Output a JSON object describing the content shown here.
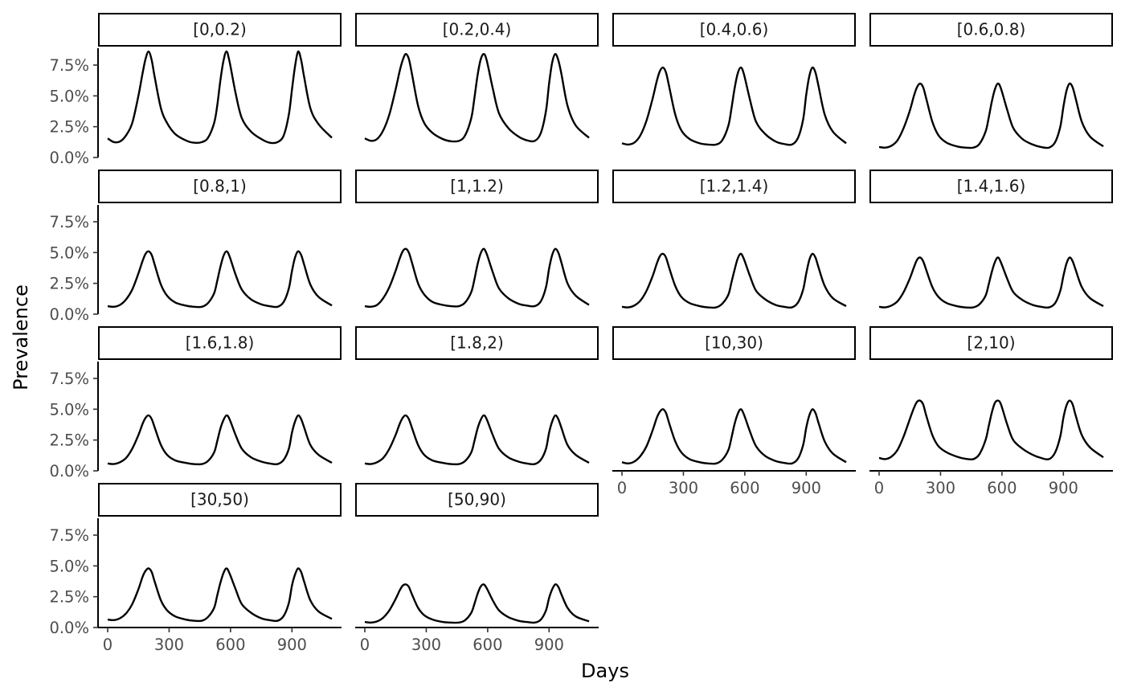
{
  "chart_data": {
    "type": "line",
    "layout": "faceted small multiples, 4 columns",
    "xlabel": "Days",
    "ylabel": "Prevalence",
    "xlim": [
      0,
      1095
    ],
    "ylim": [
      0,
      0.09
    ],
    "x_ticks": [
      0,
      300,
      600,
      900
    ],
    "x_tick_labels": [
      "0",
      "300",
      "600",
      "900"
    ],
    "y_ticks": [
      0,
      0.025,
      0.05,
      0.075
    ],
    "y_tick_labels": [
      "0.0%",
      "2.5%",
      "5.0%",
      "7.5%"
    ],
    "series_color": "#000000",
    "grid": false,
    "x_sampled": [
      0,
      30,
      60,
      90,
      120,
      150,
      170,
      185,
      200,
      215,
      230,
      260,
      290,
      330,
      380,
      420,
      460,
      490,
      520,
      535,
      550,
      565,
      580,
      595,
      625,
      655,
      700,
      750,
      790,
      830,
      860,
      885,
      900,
      915,
      930,
      945,
      960,
      990,
      1030,
      1095
    ],
    "facets": [
      {
        "label": "[0,0.2)",
        "values": [
          0.0155,
          0.0125,
          0.013,
          0.018,
          0.028,
          0.05,
          0.068,
          0.08,
          0.086,
          0.079,
          0.065,
          0.04,
          0.028,
          0.019,
          0.014,
          0.012,
          0.0125,
          0.016,
          0.028,
          0.042,
          0.062,
          0.078,
          0.086,
          0.078,
          0.052,
          0.032,
          0.021,
          0.015,
          0.012,
          0.0125,
          0.018,
          0.035,
          0.055,
          0.074,
          0.086,
          0.079,
          0.065,
          0.04,
          0.027,
          0.016
        ]
      },
      {
        "label": "[0.2,0.4)",
        "values": [
          0.0155,
          0.0135,
          0.015,
          0.022,
          0.035,
          0.055,
          0.07,
          0.079,
          0.084,
          0.08,
          0.068,
          0.042,
          0.028,
          0.02,
          0.015,
          0.0132,
          0.0135,
          0.018,
          0.032,
          0.048,
          0.066,
          0.079,
          0.084,
          0.079,
          0.056,
          0.036,
          0.024,
          0.017,
          0.014,
          0.0135,
          0.02,
          0.038,
          0.06,
          0.077,
          0.084,
          0.079,
          0.068,
          0.042,
          0.026,
          0.016
        ]
      },
      {
        "label": "[0.4,0.6)",
        "values": [
          0.0115,
          0.0105,
          0.012,
          0.018,
          0.03,
          0.048,
          0.062,
          0.07,
          0.073,
          0.069,
          0.058,
          0.035,
          0.022,
          0.015,
          0.0115,
          0.0105,
          0.0105,
          0.014,
          0.026,
          0.04,
          0.056,
          0.068,
          0.073,
          0.068,
          0.047,
          0.029,
          0.019,
          0.013,
          0.011,
          0.0105,
          0.016,
          0.031,
          0.051,
          0.066,
          0.073,
          0.069,
          0.058,
          0.035,
          0.021,
          0.0115
        ]
      },
      {
        "label": "[0.6,0.8)",
        "values": [
          0.0085,
          0.008,
          0.0095,
          0.014,
          0.024,
          0.038,
          0.05,
          0.057,
          0.06,
          0.057,
          0.048,
          0.029,
          0.018,
          0.012,
          0.009,
          0.008,
          0.008,
          0.011,
          0.021,
          0.032,
          0.045,
          0.055,
          0.06,
          0.056,
          0.039,
          0.024,
          0.015,
          0.0105,
          0.0085,
          0.008,
          0.0125,
          0.025,
          0.041,
          0.054,
          0.06,
          0.057,
          0.048,
          0.029,
          0.017,
          0.009
        ]
      },
      {
        "label": "[0.8,1)",
        "values": [
          0.0065,
          0.006,
          0.0075,
          0.012,
          0.02,
          0.033,
          0.043,
          0.049,
          0.051,
          0.048,
          0.04,
          0.024,
          0.015,
          0.0095,
          0.007,
          0.006,
          0.006,
          0.009,
          0.017,
          0.027,
          0.038,
          0.047,
          0.051,
          0.047,
          0.032,
          0.02,
          0.012,
          0.008,
          0.0065,
          0.006,
          0.01,
          0.021,
          0.035,
          0.046,
          0.051,
          0.048,
          0.04,
          0.024,
          0.014,
          0.007
        ]
      },
      {
        "label": "[1,1.2)",
        "values": [
          0.0065,
          0.006,
          0.0075,
          0.013,
          0.022,
          0.035,
          0.045,
          0.051,
          0.053,
          0.05,
          0.042,
          0.025,
          0.016,
          0.01,
          0.0075,
          0.0065,
          0.0065,
          0.0095,
          0.018,
          0.028,
          0.04,
          0.049,
          0.053,
          0.049,
          0.034,
          0.021,
          0.013,
          0.0085,
          0.007,
          0.0065,
          0.0105,
          0.022,
          0.037,
          0.048,
          0.053,
          0.05,
          0.042,
          0.025,
          0.015,
          0.0075
        ]
      },
      {
        "label": "[1.2,1.4)",
        "values": [
          0.006,
          0.0055,
          0.007,
          0.011,
          0.019,
          0.031,
          0.041,
          0.047,
          0.049,
          0.046,
          0.038,
          0.023,
          0.014,
          0.009,
          0.0065,
          0.0055,
          0.0055,
          0.0085,
          0.016,
          0.026,
          0.036,
          0.045,
          0.049,
          0.045,
          0.031,
          0.019,
          0.012,
          0.0075,
          0.006,
          0.0055,
          0.0095,
          0.02,
          0.033,
          0.044,
          0.049,
          0.046,
          0.038,
          0.023,
          0.013,
          0.0065
        ]
      },
      {
        "label": "[1.4,1.6)",
        "values": [
          0.006,
          0.0055,
          0.007,
          0.0105,
          0.018,
          0.029,
          0.038,
          0.044,
          0.046,
          0.043,
          0.036,
          0.022,
          0.014,
          0.009,
          0.0065,
          0.0055,
          0.0055,
          0.008,
          0.015,
          0.024,
          0.034,
          0.042,
          0.046,
          0.042,
          0.029,
          0.018,
          0.0115,
          0.0075,
          0.006,
          0.0055,
          0.009,
          0.019,
          0.031,
          0.041,
          0.046,
          0.043,
          0.036,
          0.022,
          0.013,
          0.0065
        ]
      },
      {
        "label": "[1.6,1.8)",
        "values": [
          0.006,
          0.0055,
          0.007,
          0.0105,
          0.018,
          0.029,
          0.038,
          0.043,
          0.045,
          0.042,
          0.035,
          0.021,
          0.013,
          0.0085,
          0.0065,
          0.0055,
          0.0055,
          0.008,
          0.015,
          0.024,
          0.034,
          0.041,
          0.045,
          0.042,
          0.029,
          0.018,
          0.011,
          0.0075,
          0.006,
          0.0055,
          0.009,
          0.018,
          0.031,
          0.04,
          0.045,
          0.042,
          0.035,
          0.021,
          0.013,
          0.0065
        ]
      },
      {
        "label": "[1.8,2)",
        "values": [
          0.006,
          0.0055,
          0.007,
          0.0105,
          0.018,
          0.029,
          0.038,
          0.043,
          0.045,
          0.042,
          0.035,
          0.021,
          0.013,
          0.0085,
          0.0065,
          0.0055,
          0.0055,
          0.008,
          0.015,
          0.024,
          0.034,
          0.041,
          0.045,
          0.042,
          0.029,
          0.018,
          0.011,
          0.0075,
          0.006,
          0.0055,
          0.009,
          0.018,
          0.031,
          0.04,
          0.045,
          0.042,
          0.035,
          0.021,
          0.013,
          0.0065
        ]
      },
      {
        "label": "[10,30)",
        "values": [
          0.007,
          0.006,
          0.0075,
          0.012,
          0.02,
          0.033,
          0.043,
          0.048,
          0.05,
          0.047,
          0.039,
          0.024,
          0.015,
          0.0095,
          0.007,
          0.006,
          0.006,
          0.009,
          0.017,
          0.027,
          0.038,
          0.046,
          0.05,
          0.046,
          0.032,
          0.02,
          0.012,
          0.008,
          0.0065,
          0.006,
          0.01,
          0.021,
          0.035,
          0.045,
          0.05,
          0.047,
          0.039,
          0.024,
          0.014,
          0.007
        ]
      },
      {
        "label": "[2,10)",
        "values": [
          0.0105,
          0.0095,
          0.0115,
          0.017,
          0.028,
          0.042,
          0.051,
          0.056,
          0.057,
          0.054,
          0.045,
          0.029,
          0.02,
          0.015,
          0.0115,
          0.0098,
          0.0095,
          0.0135,
          0.025,
          0.036,
          0.047,
          0.055,
          0.057,
          0.054,
          0.038,
          0.025,
          0.018,
          0.013,
          0.0105,
          0.0095,
          0.015,
          0.028,
          0.043,
          0.053,
          0.057,
          0.054,
          0.045,
          0.029,
          0.019,
          0.011
        ]
      },
      {
        "label": "[30,50)",
        "values": [
          0.0065,
          0.006,
          0.0075,
          0.0115,
          0.019,
          0.031,
          0.041,
          0.046,
          0.048,
          0.045,
          0.037,
          0.022,
          0.014,
          0.009,
          0.0065,
          0.0055,
          0.0055,
          0.0085,
          0.016,
          0.026,
          0.036,
          0.044,
          0.048,
          0.044,
          0.031,
          0.019,
          0.012,
          0.0075,
          0.006,
          0.0055,
          0.0095,
          0.02,
          0.034,
          0.043,
          0.048,
          0.045,
          0.037,
          0.022,
          0.013,
          0.007
        ]
      },
      {
        "label": "[50,90)",
        "values": [
          0.0045,
          0.004,
          0.005,
          0.008,
          0.014,
          0.023,
          0.03,
          0.034,
          0.035,
          0.033,
          0.027,
          0.016,
          0.01,
          0.0065,
          0.0045,
          0.004,
          0.004,
          0.006,
          0.012,
          0.019,
          0.027,
          0.033,
          0.035,
          0.032,
          0.022,
          0.014,
          0.0085,
          0.0055,
          0.0045,
          0.004,
          0.0065,
          0.014,
          0.024,
          0.031,
          0.035,
          0.033,
          0.027,
          0.016,
          0.009,
          0.005
        ]
      }
    ]
  }
}
